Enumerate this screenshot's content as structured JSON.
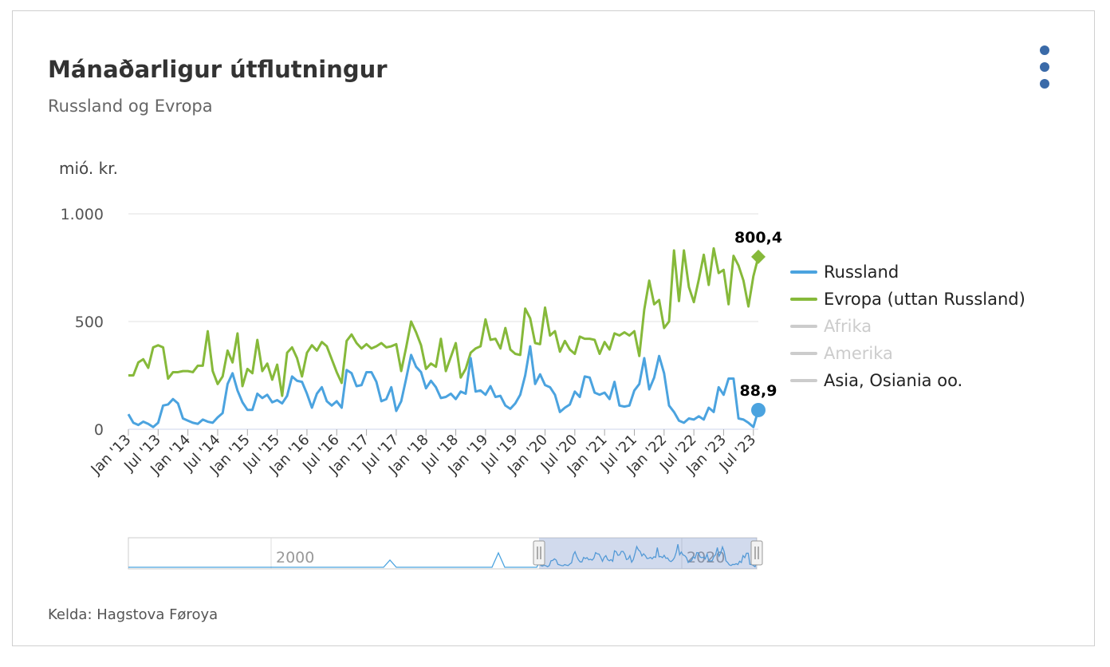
{
  "header": {
    "title": "Mánaðarligur útflutningur",
    "subtitle": "Russland og Evropa",
    "menu_icon": "kebab-menu-icon"
  },
  "footer": {
    "source": "Kelda: Hagstova Føroya"
  },
  "chart_data": {
    "type": "line",
    "title": "Mánaðarligur útflutningur",
    "subtitle": "Russland og Evropa",
    "ylabel": "mió. kr.",
    "ylim": [
      0,
      1000
    ],
    "yticks": [
      0,
      500,
      1000
    ],
    "ytick_labels": [
      "0",
      "500",
      "1.000"
    ],
    "xlim": [
      "Jan '13",
      "Sep '23"
    ],
    "xticks": [
      "Jan '13",
      "Jul '13",
      "Jan '14",
      "Jul '14",
      "Jan '15",
      "Jul '15",
      "Jan '16",
      "Jul '16",
      "Jan '17",
      "Jul '17",
      "Jan '18",
      "Jul '18",
      "Jan '19",
      "Jul '19",
      "Jan '20",
      "Jul '20",
      "Jan '21",
      "Jul '21",
      "Jan '22",
      "Jul '22",
      "Jan '23",
      "Jul '23"
    ],
    "grid": "horizontal",
    "legend_position": "right",
    "legend": [
      {
        "name": "Russland",
        "color": "#4ba3df",
        "active": true
      },
      {
        "name": "Evropa (uttan Russland)",
        "color": "#86b93a",
        "active": true
      },
      {
        "name": "Afrika",
        "color": "#cccccc",
        "active": false
      },
      {
        "name": "Amerika",
        "color": "#cccccc",
        "active": false
      },
      {
        "name": "Asia, Osiania oo.",
        "color": "#cccccc",
        "active": false
      }
    ],
    "series": [
      {
        "name": "Russland",
        "color": "#4ba3df",
        "last_label": "88,9",
        "values": [
          70,
          30,
          20,
          35,
          25,
          10,
          30,
          110,
          115,
          140,
          120,
          50,
          40,
          30,
          25,
          45,
          35,
          30,
          55,
          75,
          210,
          260,
          180,
          125,
          90,
          90,
          165,
          145,
          160,
          125,
          135,
          120,
          155,
          245,
          225,
          220,
          165,
          100,
          165,
          195,
          130,
          110,
          130,
          100,
          275,
          260,
          200,
          205,
          265,
          265,
          220,
          130,
          140,
          195,
          85,
          130,
          235,
          345,
          290,
          265,
          190,
          225,
          195,
          145,
          150,
          165,
          140,
          175,
          165,
          330,
          175,
          180,
          160,
          200,
          150,
          155,
          110,
          95,
          120,
          160,
          250,
          385,
          210,
          255,
          205,
          195,
          160,
          80,
          100,
          115,
          175,
          150,
          245,
          240,
          170,
          160,
          170,
          140,
          220,
          110,
          105,
          110,
          180,
          210,
          330,
          185,
          240,
          340,
          260,
          110,
          80,
          40,
          30,
          50,
          45,
          60,
          45,
          100,
          80,
          195,
          160,
          235,
          235,
          50,
          45,
          30,
          10,
          88.9
        ]
      },
      {
        "name": "Evropa (uttan Russland)",
        "color": "#86b93a",
        "last_label": "800,4",
        "values": [
          250,
          250,
          310,
          325,
          285,
          380,
          390,
          380,
          235,
          265,
          265,
          270,
          270,
          265,
          295,
          295,
          455,
          270,
          210,
          245,
          365,
          310,
          445,
          200,
          280,
          260,
          415,
          270,
          305,
          230,
          300,
          155,
          355,
          380,
          330,
          245,
          355,
          390,
          365,
          405,
          385,
          325,
          265,
          215,
          410,
          440,
          400,
          375,
          395,
          375,
          385,
          400,
          380,
          385,
          395,
          270,
          380,
          500,
          450,
          390,
          280,
          305,
          290,
          420,
          270,
          335,
          400,
          240,
          280,
          355,
          375,
          385,
          510,
          415,
          420,
          375,
          470,
          370,
          350,
          345,
          560,
          515,
          400,
          395,
          565,
          435,
          455,
          360,
          410,
          370,
          350,
          430,
          420,
          420,
          415,
          350,
          405,
          370,
          445,
          435,
          450,
          435,
          455,
          340,
          555,
          690,
          580,
          600,
          470,
          500,
          830,
          595,
          830,
          660,
          590,
          695,
          810,
          670,
          840,
          725,
          740,
          580,
          805,
          760,
          690,
          570,
          710,
          800.4
        ]
      }
    ],
    "navigator": {
      "range_labels": [
        "2000",
        "2020"
      ],
      "selected_start": "Jan '13",
      "selected_end": "Sep '23"
    }
  }
}
